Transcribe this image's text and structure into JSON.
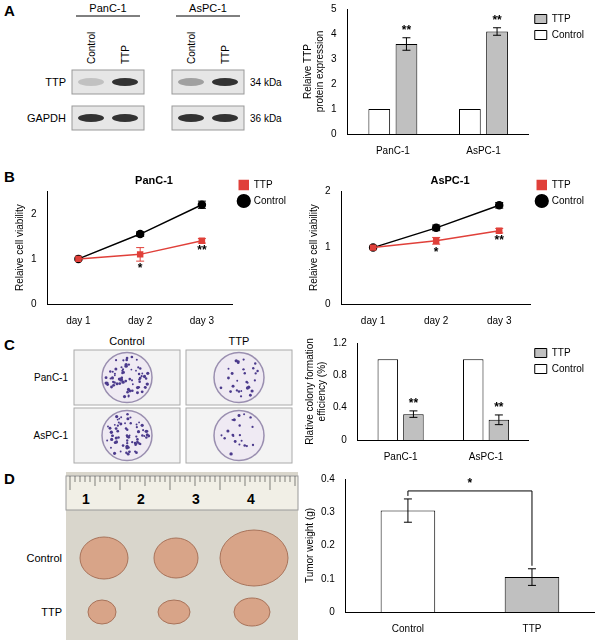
{
  "panel_labels": [
    "A",
    "B",
    "C",
    "D"
  ],
  "blot": {
    "cell_lines": [
      "PanC-1",
      "AsPC-1"
    ],
    "lanes": [
      "Control",
      "TTP"
    ],
    "rows": [
      {
        "protein": "TTP",
        "size": "34 kDa"
      },
      {
        "protein": "GAPDH",
        "size": "36 kDa"
      }
    ]
  },
  "colony_photos": {
    "columns": [
      "Control",
      "TTP"
    ],
    "rows": [
      "PanC-1",
      "AsPC-1"
    ]
  },
  "tumor_photo": {
    "ruler": [
      "1",
      "2",
      "3",
      "4"
    ],
    "rows": [
      "Control",
      "TTP"
    ]
  },
  "chart_data": [
    {
      "type": "bar",
      "y_label": "Relaive TTP protein expression",
      "categories": [
        "PanC-1",
        "AsPC-1"
      ],
      "series": [
        {
          "name": "Control",
          "color": "#ffffff",
          "values": [
            1,
            1
          ],
          "errors": [
            0,
            0
          ]
        },
        {
          "name": "TTP",
          "color": "#c0c0c0",
          "values": [
            3.6,
            4.1
          ],
          "errors": [
            0.25,
            0.15
          ]
        }
      ],
      "ylim": [
        0,
        5
      ],
      "yticks": [
        0,
        1,
        2,
        3,
        4,
        5
      ],
      "grid": false,
      "legend": "upper right",
      "annotations": [
        {
          "series": "TTP",
          "index": 0,
          "text": "**"
        },
        {
          "series": "TTP",
          "index": 1,
          "text": "**"
        }
      ]
    },
    {
      "type": "line",
      "title": "PanC-1",
      "y_label": "Relaive cell viability",
      "categories": [
        "day 1",
        "day 2",
        "day 3"
      ],
      "series": [
        {
          "name": "TTP",
          "color": "#e0403a",
          "marker": "square",
          "values": [
            1,
            1.1,
            1.4
          ],
          "errors": [
            0,
            0.15,
            0.05
          ]
        },
        {
          "name": "Control",
          "color": "#000000",
          "marker": "circle",
          "values": [
            1,
            1.55,
            2.2
          ],
          "errors": [
            0,
            0.05,
            0.08
          ]
        }
      ],
      "ylim": [
        0,
        2.5
      ],
      "yticks": [
        0,
        1,
        2
      ],
      "grid": false,
      "legend": "upper right",
      "annotations": [
        {
          "series": "TTP",
          "index": 1,
          "text": "*"
        },
        {
          "series": "TTP",
          "index": 2,
          "text": "**"
        }
      ]
    },
    {
      "type": "line",
      "title": "AsPC-1",
      "y_label": "Relaive cell viability",
      "categories": [
        "day 1",
        "day 2",
        "day 3"
      ],
      "series": [
        {
          "name": "TTP",
          "color": "#e0403a",
          "marker": "square",
          "values": [
            1,
            1.12,
            1.3
          ],
          "errors": [
            0,
            0.06,
            0.04
          ]
        },
        {
          "name": "Control",
          "color": "#000000",
          "marker": "circle",
          "values": [
            1,
            1.35,
            1.75
          ],
          "errors": [
            0,
            0.05,
            0.05
          ]
        }
      ],
      "ylim": [
        0,
        2
      ],
      "yticks": [
        0,
        1,
        2
      ],
      "grid": false,
      "legend": "upper right",
      "annotations": [
        {
          "series": "TTP",
          "index": 1,
          "text": "*"
        },
        {
          "series": "TTP",
          "index": 2,
          "text": "**"
        }
      ]
    },
    {
      "type": "bar",
      "y_label": "Rlative colony formation efficiency (%)",
      "categories": [
        "PanC-1",
        "AsPC-1"
      ],
      "series": [
        {
          "name": "Control",
          "color": "#ffffff",
          "values": [
            1,
            1
          ],
          "errors": [
            0,
            0
          ]
        },
        {
          "name": "TTP",
          "color": "#c0c0c0",
          "values": [
            0.32,
            0.25
          ],
          "errors": [
            0.04,
            0.06
          ]
        }
      ],
      "ylim": [
        0,
        1.2
      ],
      "yticks": [
        0,
        0.4,
        0.8,
        1.2
      ],
      "grid": false,
      "legend": "upper right",
      "annotations": [
        {
          "series": "TTP",
          "index": 0,
          "text": "**"
        },
        {
          "series": "TTP",
          "index": 1,
          "text": "**"
        }
      ]
    },
    {
      "type": "bar",
      "y_label": "Tumor weight (g)",
      "categories": [
        "Control",
        "TTP"
      ],
      "values": [
        0.305,
        0.105
      ],
      "errors": [
        0.035,
        0.025
      ],
      "colors": [
        "#ffffff",
        "#c0c0c0"
      ],
      "ylim": [
        0,
        0.4
      ],
      "yticks": [
        0,
        0.1,
        0.2,
        0.3,
        0.4
      ],
      "grid": false,
      "annotations": [
        {
          "from": 0,
          "to": 1,
          "text": "*"
        }
      ]
    }
  ]
}
